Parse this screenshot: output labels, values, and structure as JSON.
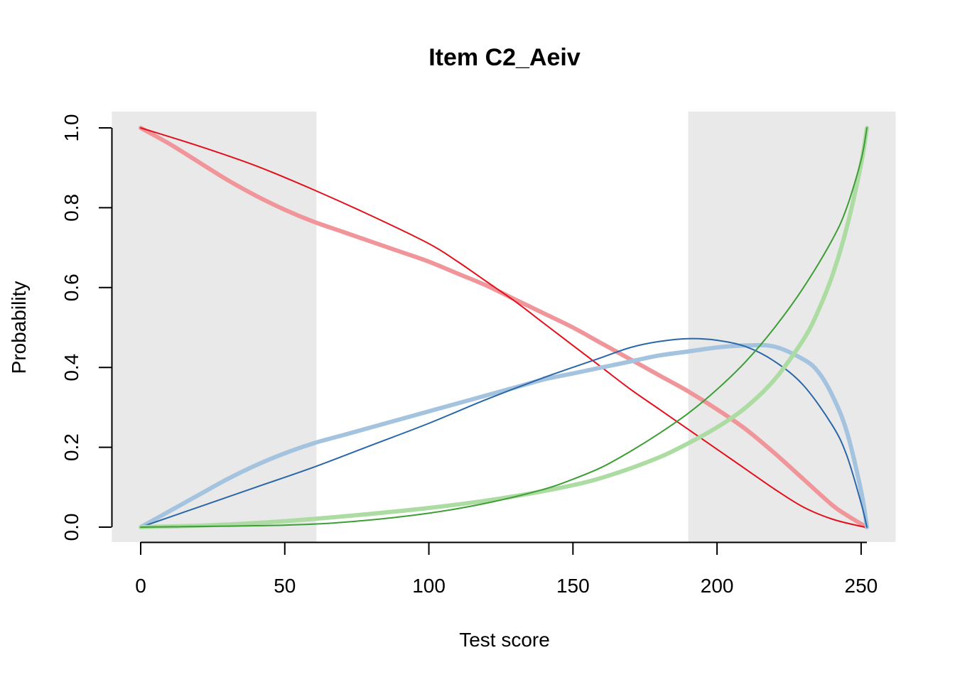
{
  "chart_data": {
    "type": "line",
    "title": "Item C2_Aeiv",
    "xlabel": "Test score",
    "ylabel": "Probability",
    "xlim": [
      -10,
      262
    ],
    "ylim": [
      -0.04,
      1.04
    ],
    "x_ticks": [
      0,
      50,
      100,
      150,
      200,
      250
    ],
    "x_tick_labels": [
      "0",
      "50",
      "100",
      "150",
      "200",
      "250"
    ],
    "y_ticks": [
      0,
      0.2,
      0.4,
      0.6,
      0.8,
      1.0
    ],
    "y_tick_labels": [
      "0.0",
      "0.2",
      "0.4",
      "0.6",
      "0.8",
      "1.0"
    ],
    "shaded_regions": [
      {
        "x_from": -10,
        "x_to": 61,
        "color": "#e9e9e9"
      },
      {
        "x_from": 190,
        "x_to": 262,
        "color": "#e9e9e9"
      }
    ],
    "grid": false,
    "series": [
      {
        "style": "thick",
        "color": "#f0969a",
        "points": [
          [
            0,
            1.0
          ],
          [
            10,
            0.96
          ],
          [
            20,
            0.915
          ],
          [
            30,
            0.87
          ],
          [
            40,
            0.83
          ],
          [
            50,
            0.795
          ],
          [
            60,
            0.765
          ],
          [
            70,
            0.74
          ],
          [
            80,
            0.715
          ],
          [
            90,
            0.69
          ],
          [
            100,
            0.665
          ],
          [
            110,
            0.635
          ],
          [
            120,
            0.605
          ],
          [
            130,
            0.57
          ],
          [
            140,
            0.535
          ],
          [
            150,
            0.5
          ],
          [
            160,
            0.46
          ],
          [
            170,
            0.42
          ],
          [
            180,
            0.38
          ],
          [
            190,
            0.34
          ],
          [
            200,
            0.295
          ],
          [
            210,
            0.245
          ],
          [
            220,
            0.185
          ],
          [
            230,
            0.12
          ],
          [
            240,
            0.055
          ],
          [
            245,
            0.03
          ],
          [
            250,
            0.008
          ],
          [
            252,
            0.0
          ]
        ]
      },
      {
        "style": "thin",
        "color": "#e3101c",
        "points": [
          [
            0,
            1.0
          ],
          [
            20,
            0.955
          ],
          [
            40,
            0.905
          ],
          [
            60,
            0.845
          ],
          [
            80,
            0.78
          ],
          [
            100,
            0.71
          ],
          [
            110,
            0.665
          ],
          [
            120,
            0.615
          ],
          [
            130,
            0.565
          ],
          [
            140,
            0.51
          ],
          [
            150,
            0.455
          ],
          [
            160,
            0.4
          ],
          [
            170,
            0.345
          ],
          [
            180,
            0.295
          ],
          [
            190,
            0.245
          ],
          [
            200,
            0.195
          ],
          [
            210,
            0.145
          ],
          [
            220,
            0.095
          ],
          [
            230,
            0.05
          ],
          [
            240,
            0.02
          ],
          [
            250,
            0.002
          ],
          [
            252,
            0.0
          ]
        ]
      },
      {
        "style": "thick",
        "color": "#a3c3df",
        "points": [
          [
            0,
            0.0
          ],
          [
            10,
            0.04
          ],
          [
            20,
            0.08
          ],
          [
            30,
            0.12
          ],
          [
            40,
            0.155
          ],
          [
            50,
            0.185
          ],
          [
            60,
            0.21
          ],
          [
            70,
            0.23
          ],
          [
            80,
            0.25
          ],
          [
            90,
            0.27
          ],
          [
            100,
            0.29
          ],
          [
            110,
            0.31
          ],
          [
            120,
            0.33
          ],
          [
            130,
            0.35
          ],
          [
            140,
            0.37
          ],
          [
            150,
            0.385
          ],
          [
            160,
            0.4
          ],
          [
            170,
            0.415
          ],
          [
            180,
            0.43
          ],
          [
            190,
            0.44
          ],
          [
            200,
            0.45
          ],
          [
            210,
            0.455
          ],
          [
            220,
            0.452
          ],
          [
            230,
            0.42
          ],
          [
            235,
            0.39
          ],
          [
            240,
            0.33
          ],
          [
            245,
            0.24
          ],
          [
            250,
            0.09
          ],
          [
            252,
            0.0
          ]
        ]
      },
      {
        "style": "thin",
        "color": "#2a67a8",
        "points": [
          [
            0,
            0.0
          ],
          [
            20,
            0.05
          ],
          [
            40,
            0.1
          ],
          [
            60,
            0.15
          ],
          [
            80,
            0.205
          ],
          [
            100,
            0.26
          ],
          [
            120,
            0.32
          ],
          [
            140,
            0.375
          ],
          [
            160,
            0.425
          ],
          [
            170,
            0.45
          ],
          [
            180,
            0.465
          ],
          [
            190,
            0.472
          ],
          [
            200,
            0.468
          ],
          [
            210,
            0.452
          ],
          [
            220,
            0.415
          ],
          [
            230,
            0.355
          ],
          [
            240,
            0.255
          ],
          [
            245,
            0.18
          ],
          [
            250,
            0.06
          ],
          [
            252,
            0.0
          ]
        ]
      },
      {
        "style": "thick",
        "color": "#acdca2",
        "points": [
          [
            0,
            0.0
          ],
          [
            25,
            0.005
          ],
          [
            50,
            0.015
          ],
          [
            75,
            0.03
          ],
          [
            100,
            0.048
          ],
          [
            125,
            0.072
          ],
          [
            150,
            0.105
          ],
          [
            165,
            0.135
          ],
          [
            180,
            0.175
          ],
          [
            190,
            0.21
          ],
          [
            200,
            0.25
          ],
          [
            210,
            0.3
          ],
          [
            220,
            0.37
          ],
          [
            230,
            0.47
          ],
          [
            235,
            0.54
          ],
          [
            240,
            0.63
          ],
          [
            245,
            0.75
          ],
          [
            250,
            0.91
          ],
          [
            252,
            1.0
          ]
        ]
      },
      {
        "style": "thin",
        "color": "#3c9e35",
        "points": [
          [
            0,
            0.0
          ],
          [
            50,
            0.005
          ],
          [
            75,
            0.015
          ],
          [
            100,
            0.035
          ],
          [
            120,
            0.06
          ],
          [
            140,
            0.095
          ],
          [
            150,
            0.12
          ],
          [
            160,
            0.15
          ],
          [
            170,
            0.19
          ],
          [
            180,
            0.235
          ],
          [
            190,
            0.285
          ],
          [
            200,
            0.345
          ],
          [
            210,
            0.415
          ],
          [
            220,
            0.5
          ],
          [
            230,
            0.6
          ],
          [
            240,
            0.72
          ],
          [
            245,
            0.8
          ],
          [
            250,
            0.92
          ],
          [
            252,
            1.0
          ]
        ]
      }
    ]
  }
}
